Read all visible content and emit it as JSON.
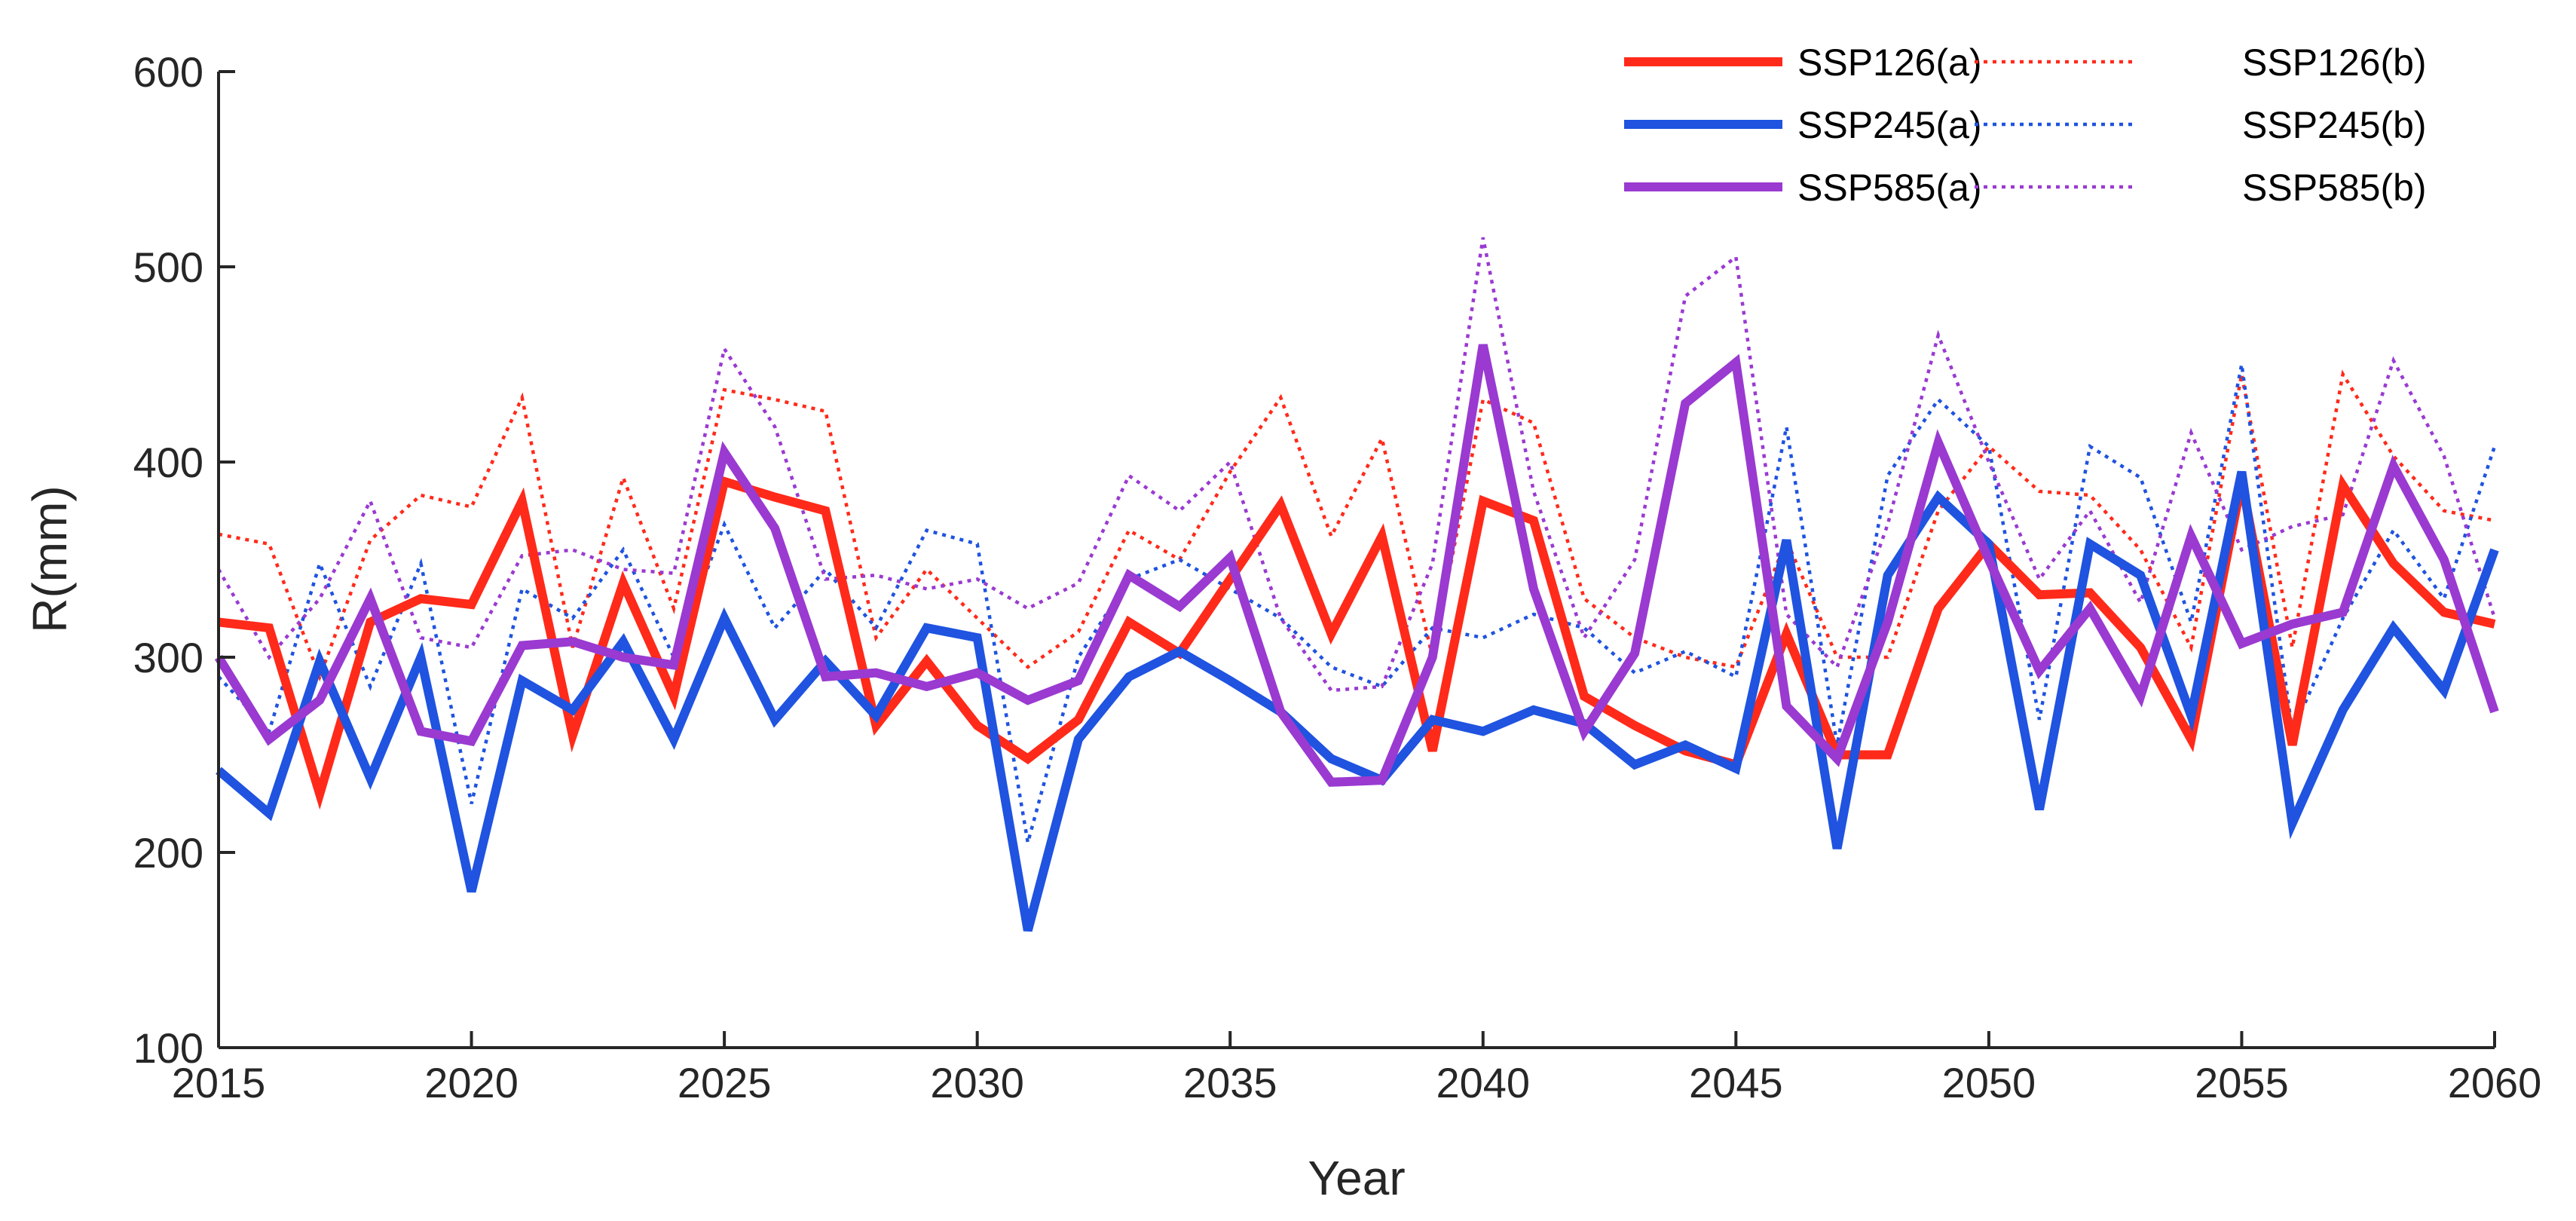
{
  "chart_data": {
    "type": "line",
    "title": "",
    "xlabel": "Year",
    "ylabel": "R(mm)",
    "xlim": [
      2015,
      2060
    ],
    "ylim": [
      100,
      600
    ],
    "xticks": [
      2015,
      2020,
      2025,
      2030,
      2035,
      2040,
      2045,
      2050,
      2055,
      2060
    ],
    "yticks": [
      100,
      200,
      300,
      400,
      500,
      600
    ],
    "xtick_labels": [
      "2015",
      "2020",
      "2025",
      "2030",
      "2035",
      "2040",
      "2045",
      "2050",
      "2055",
      "2060"
    ],
    "ytick_labels": [
      "100",
      "200",
      "300",
      "400",
      "500",
      "600"
    ],
    "grid": false,
    "legend_position": "top-right",
    "x": [
      2015,
      2016,
      2017,
      2018,
      2019,
      2020,
      2021,
      2022,
      2023,
      2024,
      2025,
      2026,
      2027,
      2028,
      2029,
      2030,
      2031,
      2032,
      2033,
      2034,
      2035,
      2036,
      2037,
      2038,
      2039,
      2040,
      2041,
      2042,
      2043,
      2044,
      2045,
      2046,
      2047,
      2048,
      2049,
      2050,
      2051,
      2052,
      2053,
      2054,
      2055,
      2056,
      2057,
      2058,
      2059,
      2060
    ],
    "series": [
      {
        "name": "SSP126(a)",
        "color": "#ff2a1a",
        "style": "solid",
        "values": [
          318,
          315,
          230,
          318,
          330,
          327,
          380,
          260,
          338,
          280,
          390,
          382,
          375,
          265,
          298,
          265,
          248,
          268,
          318,
          302,
          340,
          378,
          312,
          362,
          252,
          380,
          370,
          280,
          265,
          252,
          245,
          312,
          250,
          250,
          325,
          358,
          332,
          333,
          305,
          258,
          390,
          255,
          388,
          348,
          323,
          317
        ]
      },
      {
        "name": "SSP126(b)",
        "color": "#ff2a1a",
        "style": "dotted",
        "values": [
          363,
          358,
          290,
          360,
          383,
          377,
          433,
          305,
          392,
          325,
          437,
          432,
          426,
          310,
          345,
          320,
          295,
          313,
          365,
          350,
          395,
          433,
          362,
          412,
          300,
          432,
          420,
          330,
          310,
          300,
          295,
          360,
          300,
          300,
          375,
          408,
          385,
          383,
          355,
          305,
          445,
          305,
          445,
          403,
          375,
          370
        ]
      },
      {
        "name": "SSP245(a)",
        "color": "#1f53e0",
        "style": "solid",
        "values": [
          242,
          220,
          298,
          238,
          300,
          180,
          288,
          273,
          308,
          258,
          320,
          268,
          298,
          270,
          315,
          310,
          160,
          258,
          290,
          303,
          288,
          272,
          248,
          237,
          268,
          262,
          273,
          266,
          245,
          255,
          243,
          360,
          202,
          342,
          382,
          358,
          222,
          358,
          342,
          270,
          395,
          215,
          273,
          315,
          283,
          355
        ]
      },
      {
        "name": "SSP245(b)",
        "color": "#1f53e0",
        "style": "dotted",
        "values": [
          290,
          262,
          348,
          285,
          348,
          225,
          335,
          320,
          355,
          300,
          368,
          315,
          345,
          315,
          365,
          358,
          205,
          300,
          340,
          350,
          335,
          320,
          295,
          285,
          315,
          310,
          322,
          315,
          292,
          303,
          290,
          418,
          255,
          393,
          432,
          408,
          268,
          408,
          392,
          318,
          450,
          262,
          320,
          365,
          330,
          408
        ]
      },
      {
        "name": "SSP585(a)",
        "color": "#9a3ad1",
        "style": "solid",
        "values": [
          300,
          258,
          278,
          330,
          262,
          257,
          306,
          308,
          300,
          296,
          405,
          366,
          290,
          292,
          285,
          292,
          278,
          288,
          342,
          326,
          351,
          272,
          236,
          237,
          300,
          460,
          335,
          262,
          302,
          430,
          451,
          275,
          248,
          318,
          410,
          350,
          293,
          325,
          280,
          362,
          307,
          317,
          323,
          398,
          350,
          272
        ]
      },
      {
        "name": "SSP585(b)",
        "color": "#9a3ad1",
        "style": "dotted",
        "values": [
          345,
          300,
          330,
          380,
          310,
          305,
          352,
          355,
          345,
          343,
          458,
          418,
          340,
          342,
          335,
          340,
          325,
          338,
          393,
          375,
          400,
          320,
          283,
          285,
          348,
          515,
          385,
          310,
          350,
          485,
          505,
          322,
          295,
          368,
          465,
          400,
          340,
          375,
          328,
          415,
          355,
          367,
          373,
          452,
          403,
          320
        ]
      }
    ]
  }
}
